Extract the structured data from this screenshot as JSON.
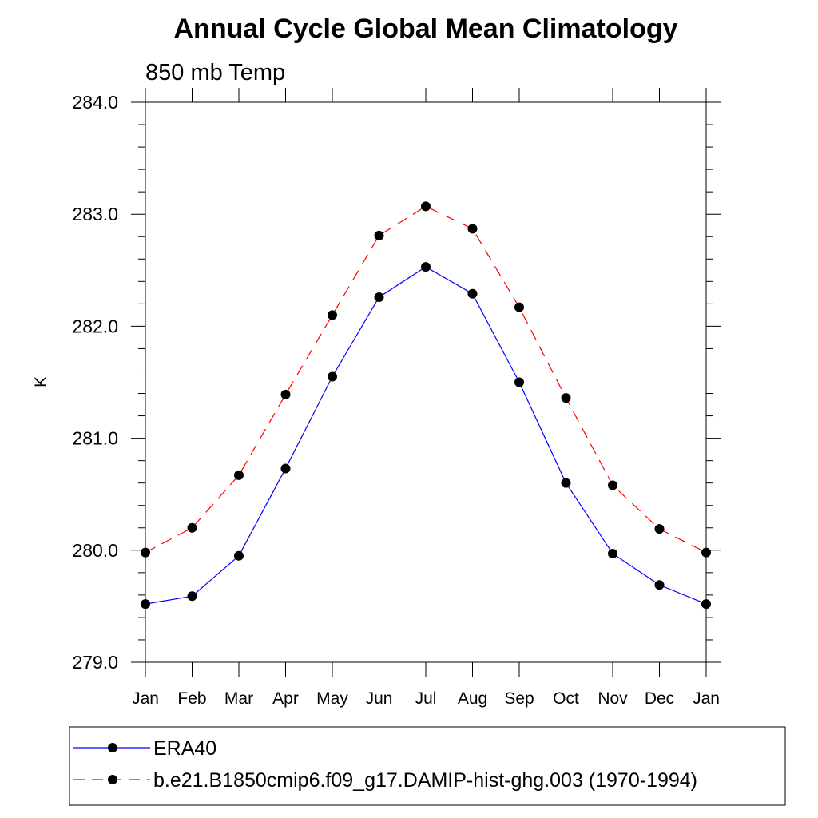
{
  "chart_data": {
    "type": "line",
    "title": "Annual Cycle Global Mean Climatology",
    "subtitle": "850 mb Temp",
    "xlabel": "",
    "ylabel": "K",
    "categories": [
      "Jan",
      "Feb",
      "Mar",
      "Apr",
      "May",
      "Jun",
      "Jul",
      "Aug",
      "Sep",
      "Oct",
      "Nov",
      "Dec",
      "Jan"
    ],
    "ylim": [
      279.0,
      284.0
    ],
    "yticks": [
      "279.0",
      "280.0",
      "281.0",
      "282.0",
      "283.0",
      "284.0"
    ],
    "grid": false,
    "legend_position": "bottom",
    "series": [
      {
        "name": "ERA40",
        "color": "#0000ff",
        "line_style": "solid",
        "marker": "filled-circle",
        "values": [
          279.52,
          279.59,
          279.95,
          280.73,
          281.55,
          282.26,
          282.53,
          282.29,
          281.5,
          280.6,
          279.97,
          279.69,
          279.52
        ]
      },
      {
        "name": "b.e21.B1850cmip6.f09_g17.DAMIP-hist-ghg.003 (1970-1994)",
        "color": "#ff0000",
        "line_style": "dashed",
        "marker": "filled-circle",
        "values": [
          279.98,
          280.2,
          280.67,
          281.39,
          282.1,
          282.81,
          283.07,
          282.87,
          282.17,
          281.36,
          280.58,
          280.19,
          279.98
        ]
      }
    ]
  }
}
